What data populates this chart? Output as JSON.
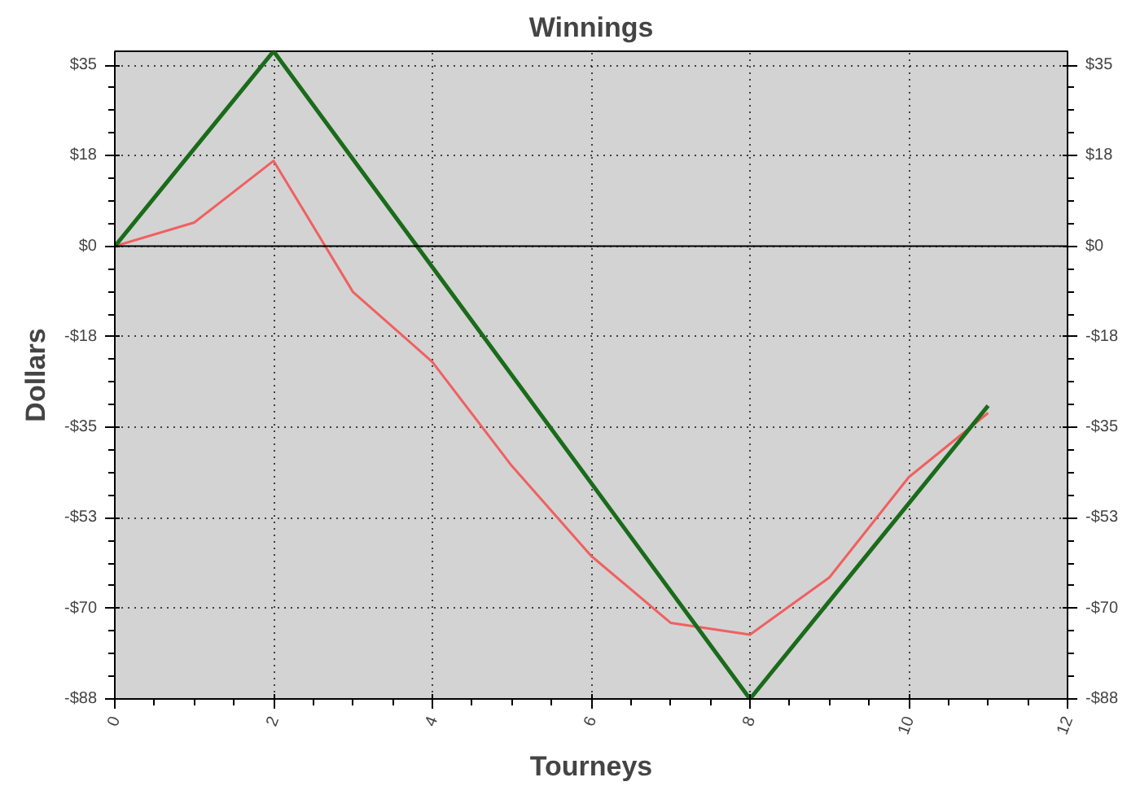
{
  "chart_data": {
    "type": "line",
    "title": "Winnings",
    "xlabel": "Tourneys",
    "ylabel": "Dollars",
    "x": [
      0,
      1,
      2,
      3,
      4,
      5,
      6,
      7,
      8,
      9,
      10,
      11
    ],
    "series": [
      {
        "color": "#f06060",
        "values": [
          0,
          4.6,
          16.6,
          -8.9,
          -22.5,
          -42.7,
          -60.2,
          -73.2,
          -75.5,
          -64.4,
          -44.9,
          -32.4
        ]
      },
      {
        "color": "#1a6b1a",
        "x": [
          0,
          2,
          8,
          11
        ],
        "values": [
          0,
          37.9,
          -88,
          -31
        ]
      }
    ],
    "xlim": [
      0,
      12
    ],
    "xticks": [
      0,
      2,
      4,
      6,
      8,
      10,
      12
    ],
    "ylim": [
      -88,
      37.9
    ],
    "yticks": [
      {
        "value": 35.2,
        "label": "$35"
      },
      {
        "value": 17.6,
        "label": "$18"
      },
      {
        "value": 0,
        "label": "$0"
      },
      {
        "value": -17.6,
        "label": "-$18"
      },
      {
        "value": -35.2,
        "label": "-$35"
      },
      {
        "value": -52.8,
        "label": "-$53"
      },
      {
        "value": -70.4,
        "label": "-$70"
      },
      {
        "value": -88,
        "label": "-$88"
      }
    ],
    "y2lim": [
      -88,
      37.9
    ],
    "y2ticks": [
      {
        "value": 35.2,
        "label": "$35"
      },
      {
        "value": 17.6,
        "label": "$18"
      },
      {
        "value": 0,
        "label": "$0"
      },
      {
        "value": -17.6,
        "label": "-$18"
      },
      {
        "value": -35.2,
        "label": "-$35"
      },
      {
        "value": -52.8,
        "label": "-$53"
      },
      {
        "value": -70.4,
        "label": "-$70"
      },
      {
        "value": -88,
        "label": "-$88"
      }
    ],
    "ref_lines": [
      {
        "axis": "y",
        "value": 0,
        "color": "#000000"
      }
    ],
    "grid": true,
    "marker": "none",
    "line_style": "solid"
  }
}
